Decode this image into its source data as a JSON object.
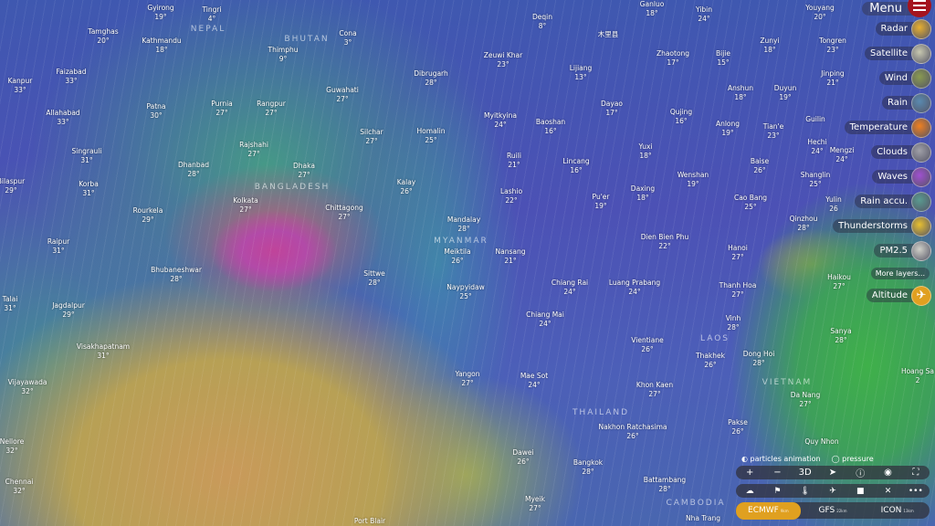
{
  "map": {
    "cities": [
      {
        "name": "Gyirong",
        "temp": "19°"
      },
      {
        "name": "Tingri",
        "temp": "4°"
      },
      {
        "name": "Tamghas",
        "temp": "20°"
      },
      {
        "name": "Kathmandu",
        "temp": "18°"
      },
      {
        "name": "Cona",
        "temp": "3°"
      },
      {
        "name": "Thimphu",
        "temp": "9°"
      },
      {
        "name": "Dibrugarh",
        "temp": "28°"
      },
      {
        "name": "Zeuwi Khar",
        "temp": "23°"
      },
      {
        "name": "Deqin",
        "temp": "8°"
      },
      {
        "name": "Yibin",
        "temp": "24°"
      },
      {
        "name": "Ganluo",
        "temp": "18°"
      },
      {
        "name": "Youyang",
        "temp": "20°"
      },
      {
        "name": "木里县",
        "temp": ""
      },
      {
        "name": "Lijiang",
        "temp": "13°"
      },
      {
        "name": "Zhaotong",
        "temp": "17°"
      },
      {
        "name": "Bijie",
        "temp": "15°"
      },
      {
        "name": "Zunyi",
        "temp": "18°"
      },
      {
        "name": "Tongren",
        "temp": "23°"
      },
      {
        "name": "Kanpur",
        "temp": "33°"
      },
      {
        "name": "Faizabad",
        "temp": "33°"
      },
      {
        "name": "Allahabad",
        "temp": "33°"
      },
      {
        "name": "Patna",
        "temp": "30°"
      },
      {
        "name": "Purnia",
        "temp": "27°"
      },
      {
        "name": "Rangpur",
        "temp": "27°"
      },
      {
        "name": "Guwahati",
        "temp": "27°"
      },
      {
        "name": "Silchar",
        "temp": "27°"
      },
      {
        "name": "Homalin",
        "temp": "25°"
      },
      {
        "name": "Myitkyina",
        "temp": "24°"
      },
      {
        "name": "Baoshan",
        "temp": "16°"
      },
      {
        "name": "Dayao",
        "temp": "17°"
      },
      {
        "name": "Qujing",
        "temp": "16°"
      },
      {
        "name": "Anshun",
        "temp": "18°"
      },
      {
        "name": "Duyun",
        "temp": "19°"
      },
      {
        "name": "Jinping",
        "temp": "21°"
      },
      {
        "name": "Guilin",
        "temp": ""
      },
      {
        "name": "Anlong",
        "temp": "19°"
      },
      {
        "name": "Tian'e",
        "temp": "23°"
      },
      {
        "name": "Hechi",
        "temp": "24°"
      },
      {
        "name": "Singrauli",
        "temp": "31°"
      },
      {
        "name": "Dhanbad",
        "temp": "28°"
      },
      {
        "name": "Rajshahi",
        "temp": "27°"
      },
      {
        "name": "Dhaka",
        "temp": "27°"
      },
      {
        "name": "Ruili",
        "temp": "21°"
      },
      {
        "name": "Lincang",
        "temp": "16°"
      },
      {
        "name": "Yuxi",
        "temp": "18°"
      },
      {
        "name": "Baise",
        "temp": "26°"
      },
      {
        "name": "Bilaspur",
        "temp": "29°"
      },
      {
        "name": "Korba",
        "temp": "31°"
      },
      {
        "name": "Rourkela",
        "temp": "29°"
      },
      {
        "name": "Kolkata",
        "temp": "27°"
      },
      {
        "name": "Chittagong",
        "temp": "27°"
      },
      {
        "name": "Kalay",
        "temp": "26°"
      },
      {
        "name": "Lashio",
        "temp": "22°"
      },
      {
        "name": "Wenshan",
        "temp": "19°"
      },
      {
        "name": "Shanglin",
        "temp": "25°"
      },
      {
        "name": "Cao Bang",
        "temp": "25°"
      },
      {
        "name": "Pu'er",
        "temp": "19°"
      },
      {
        "name": "Daxing",
        "temp": "18°"
      },
      {
        "name": "Raipur",
        "temp": "31°"
      },
      {
        "name": "Mandalay",
        "temp": "28°"
      },
      {
        "name": "Meiktila",
        "temp": "26°"
      },
      {
        "name": "Nansang",
        "temp": "21°"
      },
      {
        "name": "Dien Bien Phu",
        "temp": "22°"
      },
      {
        "name": "Hanoi",
        "temp": "27°"
      },
      {
        "name": "Qinzhou",
        "temp": "28°"
      },
      {
        "name": "Bhubaneshwar",
        "temp": "28°"
      },
      {
        "name": "Sittwe",
        "temp": "28°"
      },
      {
        "name": "Chiang Rai",
        "temp": "24°"
      },
      {
        "name": "Luang Prabang",
        "temp": "24°"
      },
      {
        "name": "Thanh Hoa",
        "temp": "27°"
      },
      {
        "name": "Haikou",
        "temp": "27°"
      },
      {
        "name": "Talai",
        "temp": "31°"
      },
      {
        "name": "Jagdalpur",
        "temp": "29°"
      },
      {
        "name": "Naypyidaw",
        "temp": "25°"
      },
      {
        "name": "Chiang Mai",
        "temp": "24°"
      },
      {
        "name": "Vinh",
        "temp": "28°"
      },
      {
        "name": "Sanya",
        "temp": "28°"
      },
      {
        "name": "Vientiane",
        "temp": "26°"
      },
      {
        "name": "Visakhapatnam",
        "temp": "31°"
      },
      {
        "name": "Thakhek",
        "temp": "26°"
      },
      {
        "name": "Dong Hoi",
        "temp": "28°"
      },
      {
        "name": "Yangon",
        "temp": "27°"
      },
      {
        "name": "Mae Sot",
        "temp": "24°"
      },
      {
        "name": "Khon Kaen",
        "temp": "27°"
      },
      {
        "name": "Da Nang",
        "temp": "27°"
      },
      {
        "name": "Vijayawada",
        "temp": "32°"
      },
      {
        "name": "Nakhon Ratchasima",
        "temp": "26°"
      },
      {
        "name": "Pakse",
        "temp": "26°"
      },
      {
        "name": "Nellore",
        "temp": "32°"
      },
      {
        "name": "Dawei",
        "temp": "26°"
      },
      {
        "name": "Bangkok",
        "temp": "28°"
      },
      {
        "name": "Battambang",
        "temp": "28°"
      },
      {
        "name": "Chennai",
        "temp": "32°"
      },
      {
        "name": "Myeik",
        "temp": "27°"
      },
      {
        "name": "Port Blair",
        "temp": ""
      },
      {
        "name": "Nha Trang",
        "temp": ""
      },
      {
        "name": "Quy Nhon",
        "temp": ""
      },
      {
        "name": "Hoang Sa",
        "temp": "2"
      },
      {
        "name": "Mengzi",
        "temp": "24°"
      },
      {
        "name": "Yulin",
        "temp": "26"
      }
    ],
    "countries": [
      "NEPAL",
      "BHUTAN",
      "BANGLADESH",
      "MYANMAR",
      "LAOS",
      "THAILAND",
      "VIETNAM",
      "CAMBODIA"
    ]
  },
  "menu": {
    "label": "Menu",
    "layers": [
      {
        "label": "Radar",
        "color": "#e8b030"
      },
      {
        "label": "Satellite",
        "color": "#c8c8b0"
      },
      {
        "label": "Wind",
        "color": "#8a9a50"
      },
      {
        "label": "Rain",
        "color": "#5a8ab0"
      },
      {
        "label": "Temperature",
        "color": "#f08020"
      },
      {
        "label": "Clouds",
        "color": "#a0a0a8"
      },
      {
        "label": "Waves",
        "color": "#a050d0"
      },
      {
        "label": "Rain accu.",
        "color": "#5a9a90"
      },
      {
        "label": "Thunderstorms",
        "color": "#e8c030"
      },
      {
        "label": "PM2.5",
        "color": "#d0d0c8"
      }
    ],
    "more_layers": "More layers...",
    "altitude": "Altitude",
    "altitude_color": "#e0a020"
  },
  "bottom": {
    "particles": "particles animation",
    "pressure": "pressure",
    "controls": [
      "+",
      "−",
      "3D",
      "➤",
      "ⓘ",
      "◉",
      "⛶"
    ],
    "tools": [
      "☁",
      "⚑",
      "🌡",
      "✈",
      "■",
      "✕",
      "•••"
    ],
    "models": [
      {
        "name": "ECMWF",
        "res": "9km",
        "active": true
      },
      {
        "name": "GFS",
        "res": "22km",
        "active": false
      },
      {
        "name": "ICON",
        "res": "13km",
        "active": false
      }
    ]
  }
}
